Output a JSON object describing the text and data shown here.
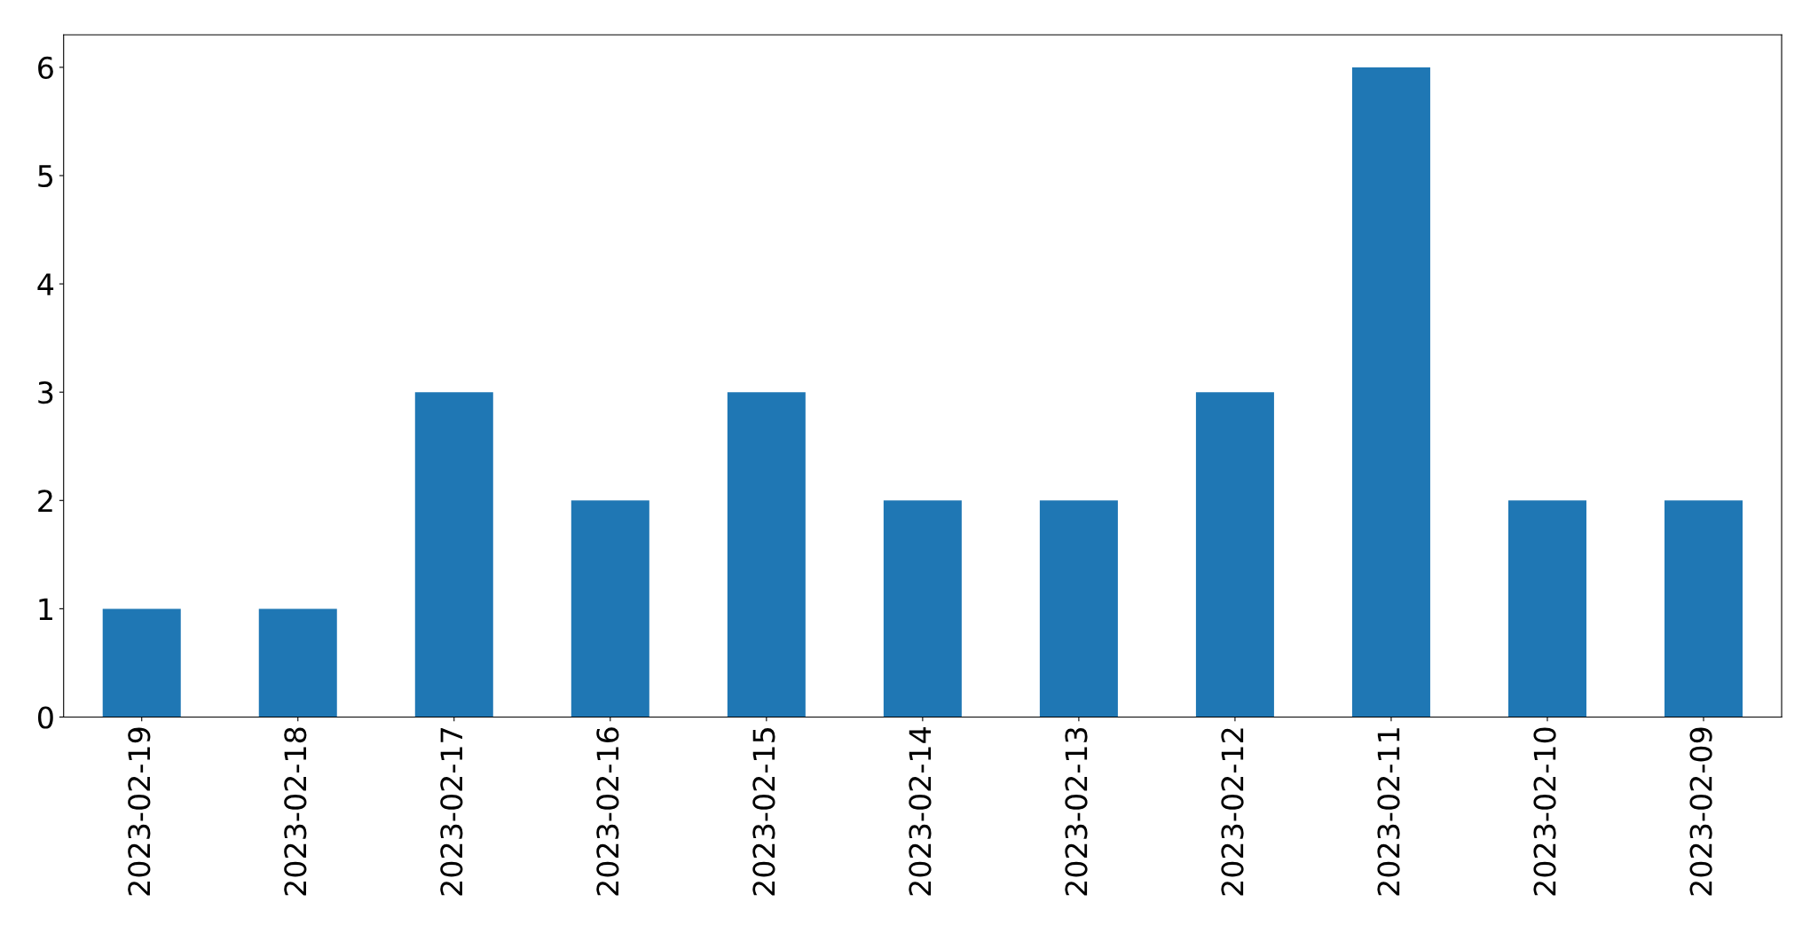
{
  "chart_data": {
    "type": "bar",
    "categories": [
      "2023-02-19",
      "2023-02-18",
      "2023-02-17",
      "2023-02-16",
      "2023-02-15",
      "2023-02-14",
      "2023-02-13",
      "2023-02-12",
      "2023-02-11",
      "2023-02-10",
      "2023-02-09"
    ],
    "values": [
      1,
      1,
      3,
      2,
      3,
      2,
      2,
      3,
      6,
      2,
      2
    ],
    "color": "#1f77b4",
    "ylim": [
      0,
      6.3
    ],
    "yticks": [
      0,
      1,
      2,
      3,
      4,
      5,
      6
    ],
    "grid": false,
    "legend": false
  }
}
